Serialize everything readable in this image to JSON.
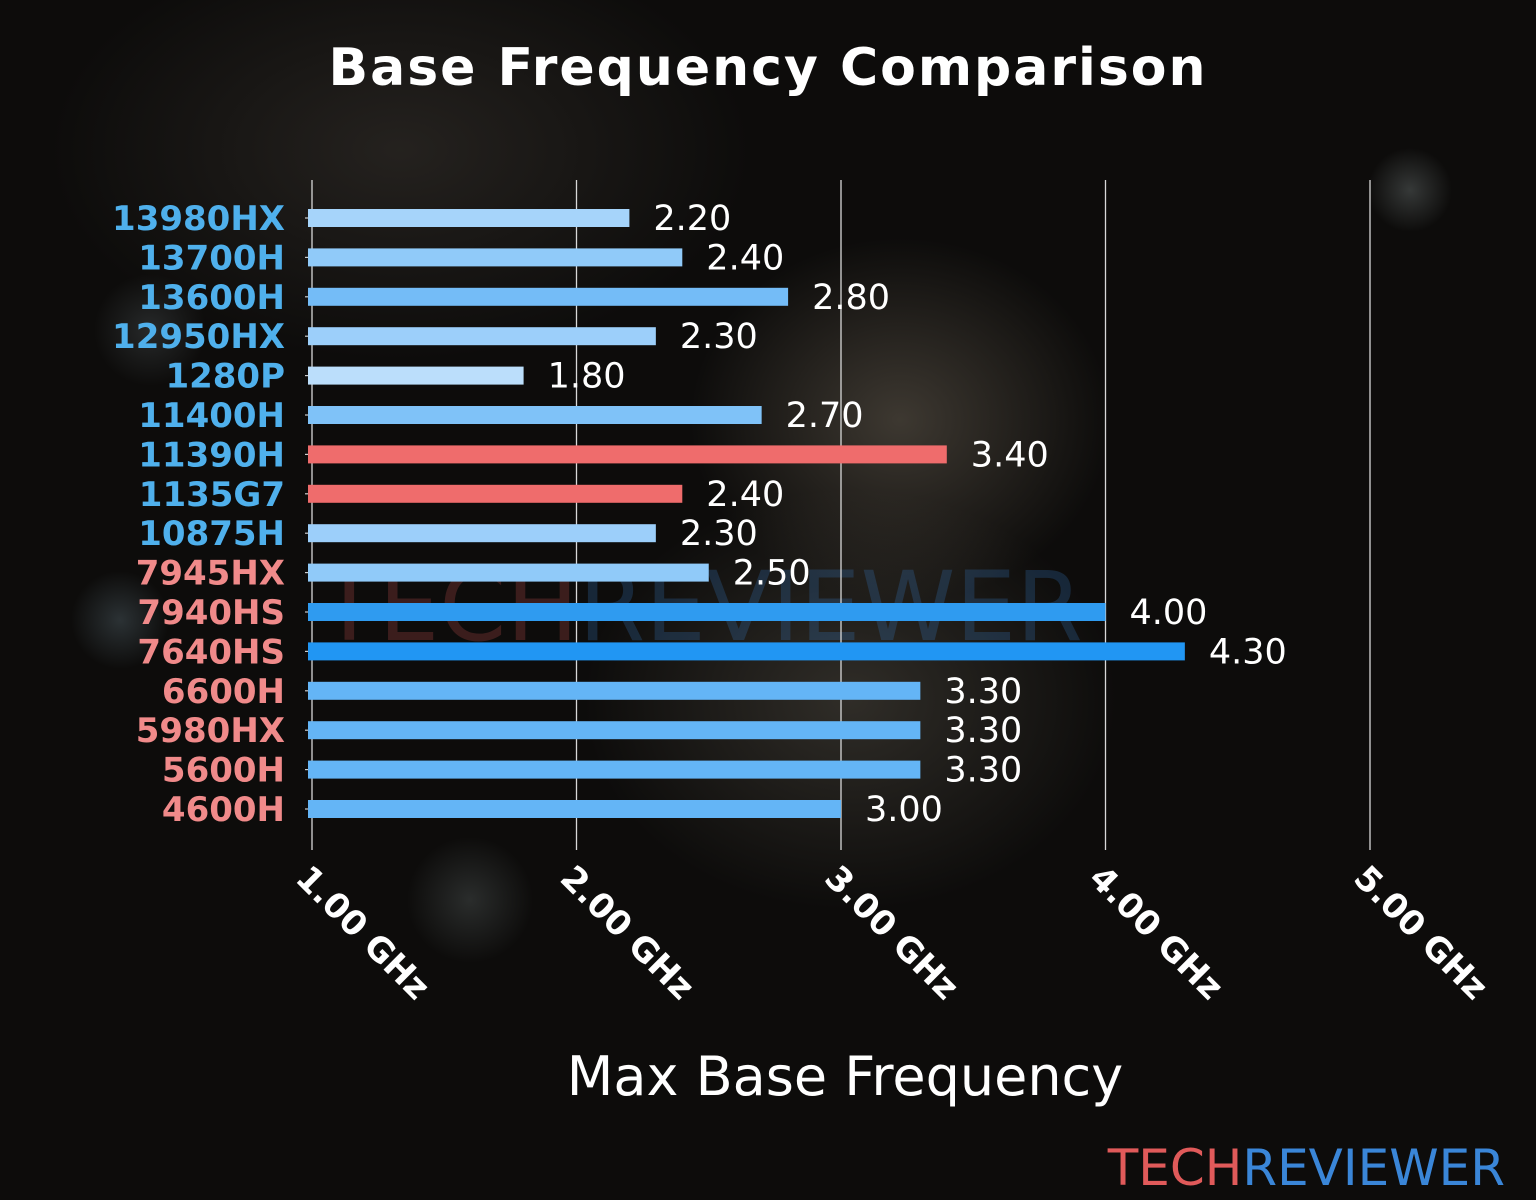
{
  "chart_data": {
    "type": "bar",
    "orientation": "horizontal",
    "title": "Base Frequency Comparison",
    "xlabel": "Max Base Frequency",
    "ylabel": "",
    "xlim": [
      1.0,
      5.0
    ],
    "xticks": [
      "1.00 GHz",
      "2.00 GHz",
      "3.00 GHz",
      "4.00 GHz",
      "5.00 GHz"
    ],
    "xtick_values": [
      1,
      2,
      3,
      4,
      5
    ],
    "grid": true,
    "categories": [
      "13980HX",
      "13700H",
      "13600H",
      "12950HX",
      "1280P",
      "11400H",
      "11390H",
      "1135G7",
      "10875H",
      "7945HX",
      "7940HS",
      "7640HS",
      "6600H",
      "5980HX",
      "5600H",
      "4600H"
    ],
    "values": [
      2.2,
      2.4,
      2.8,
      2.3,
      1.8,
      2.7,
      3.4,
      2.4,
      2.3,
      2.5,
      4.0,
      4.3,
      3.3,
      3.3,
      3.3,
      3.0
    ],
    "value_labels": [
      "2.20",
      "2.40",
      "2.80",
      "2.30",
      "1.80",
      "2.70",
      "3.40",
      "2.40",
      "2.30",
      "2.50",
      "4.00",
      "4.30",
      "3.30",
      "3.30",
      "3.30",
      "3.00"
    ],
    "bar_colors": [
      "#a6d4fa",
      "#90caf9",
      "#74bcf7",
      "#9ccffa",
      "#bbdefb",
      "#7fc2f8",
      "#ef6c6c",
      "#ef6c6c",
      "#9ccffa",
      "#90caf9",
      "#2f9bf0",
      "#2196f3",
      "#64b5f6",
      "#64b5f6",
      "#64b5f6",
      "#64b5f6"
    ],
    "label_colors": [
      "#4fb0ec",
      "#4fb0ec",
      "#4fb0ec",
      "#4fb0ec",
      "#4fb0ec",
      "#4fb0ec",
      "#4fb0ec",
      "#4fb0ec",
      "#4fb0ec",
      "#f08a8a",
      "#f08a8a",
      "#f08a8a",
      "#f08a8a",
      "#f08a8a",
      "#f08a8a",
      "#f08a8a"
    ]
  },
  "branding": {
    "logo_part1": "TECH",
    "logo_part2": "REVIEWER",
    "color1": "#e05a5a",
    "color2": "#3a86d8"
  }
}
